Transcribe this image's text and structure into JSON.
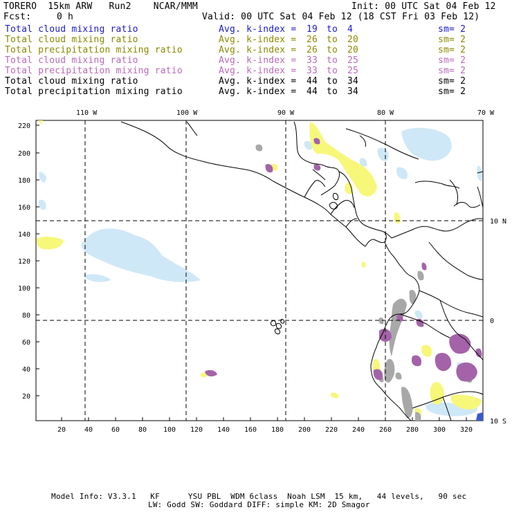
{
  "header": {
    "title_left": "TORERO  15km ARW   Run2    NCAR/MMM",
    "init": "Init: 00 UTC Sat 04 Feb 12",
    "fcst_label": "Fcst:",
    "fcst_value": "0 h",
    "valid": "Valid: 00 UTC Sat 04 Feb 12 (18 CST Fri 03 Feb 12)"
  },
  "fields": [
    {
      "label": "Total cloud mixing ratio",
      "index_label": "Avg. k-index =",
      "k_from": "19",
      "to": "to",
      "k_to": "4",
      "sm": "sm= 2",
      "color": "#1a1acc"
    },
    {
      "label": "Total cloud mixing ratio",
      "index_label": "Avg. k-index =",
      "k_from": "26",
      "to": "to",
      "k_to": "20",
      "sm": "sm= 2",
      "color": "#8a8a00"
    },
    {
      "label": "Total precipitation mixing ratio",
      "index_label": "Avg. k-index =",
      "k_from": "26",
      "to": "to",
      "k_to": "20",
      "sm": "sm= 2",
      "color": "#8a8a00"
    },
    {
      "label": "Total cloud mixing ratio",
      "index_label": "Avg. k-index =",
      "k_from": "33",
      "to": "to",
      "k_to": "25",
      "sm": "sm= 2",
      "color": "#b86ab8"
    },
    {
      "label": "Total precipitation mixing ratio",
      "index_label": "Avg. k-index =",
      "k_from": "33",
      "to": "to",
      "k_to": "25",
      "sm": "sm= 2",
      "color": "#b86ab8"
    },
    {
      "label": "Total cloud mixing ratio",
      "index_label": "Avg. k-index =",
      "k_from": "44",
      "to": "to",
      "k_to": "34",
      "sm": "sm= 2",
      "color": "#000000"
    },
    {
      "label": "Total precipitation mixing ratio",
      "index_label": "Avg. k-index =",
      "k_from": "44",
      "to": "to",
      "k_to": "34",
      "sm": "sm= 2",
      "color": "#000000"
    }
  ],
  "axes": {
    "top_lon": [
      "110 W",
      "100 W",
      "90 W",
      "80 W",
      "70 W"
    ],
    "right_lat": [
      "10 N",
      "0",
      "10 S"
    ],
    "y_ticks": [
      "220",
      "200",
      "180",
      "160",
      "140",
      "120",
      "100",
      "80",
      "60",
      "40",
      "20"
    ],
    "x_ticks": [
      "20",
      "40",
      "60",
      "80",
      "100",
      "120",
      "140",
      "160",
      "180",
      "200",
      "220",
      "240",
      "260",
      "280",
      "300",
      "320"
    ]
  },
  "footer": {
    "line1": "Model Info: V3.3.1   KF      YSU PBL  WDM 6class  Noah LSM  15 km,   44 levels,   90 sec",
    "line2": "LW: Godd SW: Goddard DIFF: simple KM: 2D Smagor"
  },
  "colors": {
    "cloud_light_blue": "#cfe8f7",
    "yellow": "#f7f77a",
    "purple": "#a463a8",
    "gray": "#a8a8a8",
    "grid": "#000000"
  }
}
